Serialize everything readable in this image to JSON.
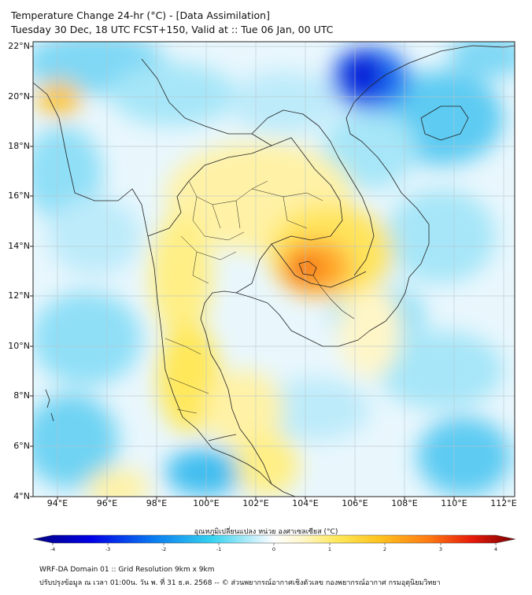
{
  "title": {
    "line1": "Temperature Change 24-hr (°C) - [Data Assimilation]",
    "line2": "Tuesday 30 Dec, 18 UTC FCST+150, Valid at :: Tue 06 Jan, 00 UTC"
  },
  "map": {
    "lat_labels": [
      "22°N",
      "20°N",
      "18°N",
      "16°N",
      "14°N",
      "12°N",
      "10°N",
      "8°N",
      "6°N",
      "4°N"
    ],
    "lon_labels": [
      "94°E",
      "96°E",
      "98°E",
      "100°E",
      "102°E",
      "104°E",
      "106°E",
      "108°E",
      "110°E",
      "112°E"
    ],
    "lat_range": [
      4,
      22
    ],
    "lon_range": [
      93,
      112.5
    ],
    "field_variable": "24-hr temperature change (°C)"
  },
  "colorbar": {
    "label": "อุณหภูมิเปลี่ยนแปลง หน่วย องศาเซลเซียส (°C)",
    "ticks": [
      "-4",
      "-3",
      "-2",
      "-1",
      "0",
      "1",
      "2",
      "3",
      "4"
    ],
    "range": [
      -4,
      4
    ]
  },
  "footer": {
    "line1": "WRF-DA Domain 01 :: Grid Resolution 9km x 9km",
    "line2": "ปรับปรุงข้อมูล ณ เวลา 01:00น. วัน พ. ที่ 31 ธ.ค. 2568 -- © ส่วนพยากรณ์อากาศเชิงตัวเลข กองพยากรณ์อากาศ กรมอุตุนิยมวิทยา"
  }
}
